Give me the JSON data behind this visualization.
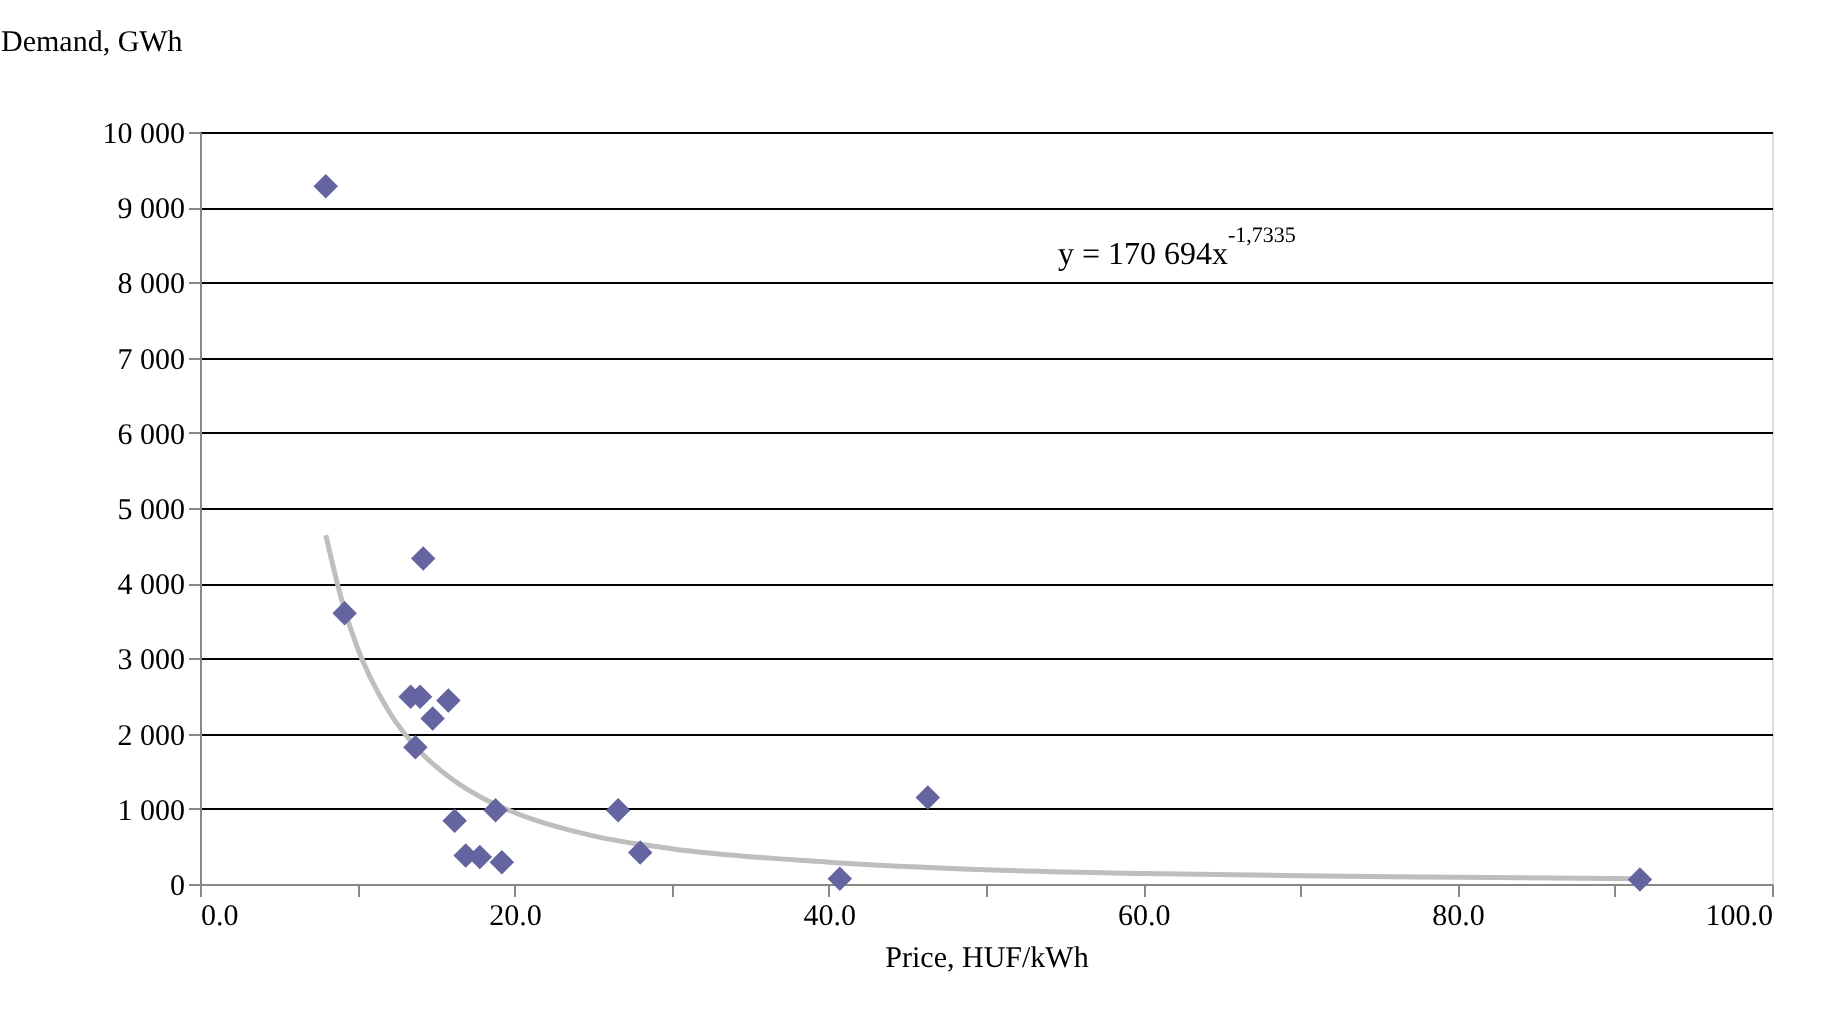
{
  "chart_data": {
    "type": "scatter",
    "xlabel": "Price, HUF/kWh",
    "ylabel": "Demand, GWh",
    "xlim": [
      0,
      100
    ],
    "ylim": [
      0,
      10000
    ],
    "xticks": [
      {
        "value": 0,
        "label": "0.0"
      },
      {
        "value": 10,
        "label": null
      },
      {
        "value": 20,
        "label": "20.0"
      },
      {
        "value": 30,
        "label": null
      },
      {
        "value": 40,
        "label": "40.0"
      },
      {
        "value": 50,
        "label": null
      },
      {
        "value": 60,
        "label": "60.0"
      },
      {
        "value": 70,
        "label": null
      },
      {
        "value": 80,
        "label": "80.0"
      },
      {
        "value": 90,
        "label": null
      },
      {
        "value": 100,
        "label": "100.0"
      }
    ],
    "yticks": [
      0,
      {
        "value": 1000,
        "label": "1 000"
      },
      {
        "value": 2000,
        "label": "2 000"
      },
      {
        "value": 3000,
        "label": "3 000"
      },
      {
        "value": 4000,
        "label": "4 000"
      },
      {
        "value": 5000,
        "label": "5 000"
      },
      {
        "value": 6000,
        "label": "6 000"
      },
      {
        "value": 7000,
        "label": "7 000"
      },
      {
        "value": 8000,
        "label": "8 000"
      },
      {
        "value": 9000,
        "label": "9 000"
      },
      {
        "value": 10000,
        "label": "10 000"
      }
    ],
    "grid": "y",
    "series": [
      {
        "marker": "diamond",
        "color": "#6464a0",
        "x": [
          8.0,
          9.2,
          14.2,
          13.4,
          14.0,
          15.8,
          14.8,
          13.7,
          16.2,
          18.8,
          16.9,
          17.8,
          19.2,
          26.6,
          28.0,
          40.7,
          46.3,
          91.6
        ],
        "values": [
          9280,
          3600,
          4330,
          2490,
          2490,
          2440,
          2200,
          1820,
          840,
          980,
          380,
          360,
          290,
          980,
          420,
          70,
          1150,
          60
        ]
      },
      {
        "type": "line",
        "marker": "none",
        "color": "#bebebe",
        "x": [
          8,
          9,
          10,
          12,
          14,
          16,
          18,
          20,
          25,
          30,
          40,
          50,
          60,
          70,
          80,
          91.6
        ],
        "values": [
          4640,
          3790,
          3150,
          2300,
          1760,
          1400,
          1140,
          950,
          640,
          470,
          290,
          190,
          140,
          110,
          90,
          70
        ]
      }
    ],
    "annotations": [
      "y = 170 694x$^{-1,7335}$"
    ]
  }
}
